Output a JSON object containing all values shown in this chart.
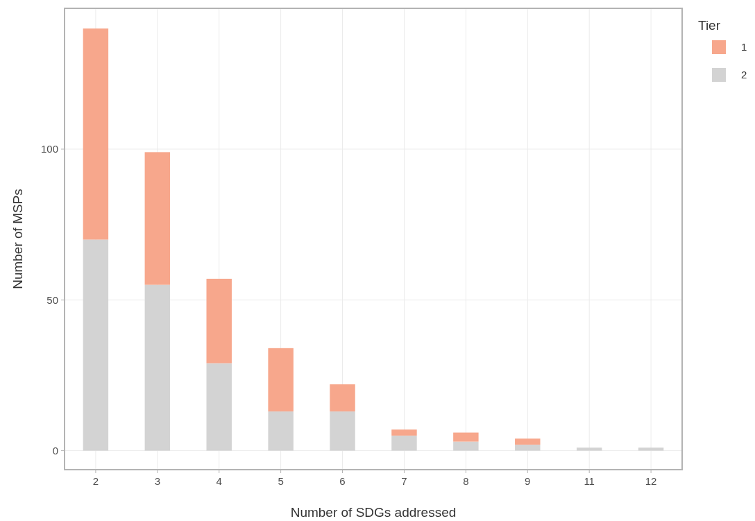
{
  "chart_data": {
    "type": "bar",
    "stacked": true,
    "xlabel": "Number of SDGs addressed",
    "ylabel": "Number of MSPs",
    "legend_title": "Tier",
    "categories": [
      "2",
      "3",
      "4",
      "5",
      "6",
      "7",
      "8",
      "9",
      "11",
      "12"
    ],
    "series": [
      {
        "name": "2",
        "color": "#d3d3d3",
        "values": [
          70,
          55,
          29,
          13,
          13,
          5,
          3,
          2,
          1,
          1
        ]
      },
      {
        "name": "1",
        "color": "#f7a78c",
        "values": [
          70,
          44,
          28,
          21,
          9,
          2,
          3,
          2,
          0,
          0
        ]
      }
    ],
    "ylim": [
      -6.3,
      146.7
    ],
    "yticks": [
      0,
      50,
      100
    ],
    "grid": true,
    "legend": "top right"
  }
}
